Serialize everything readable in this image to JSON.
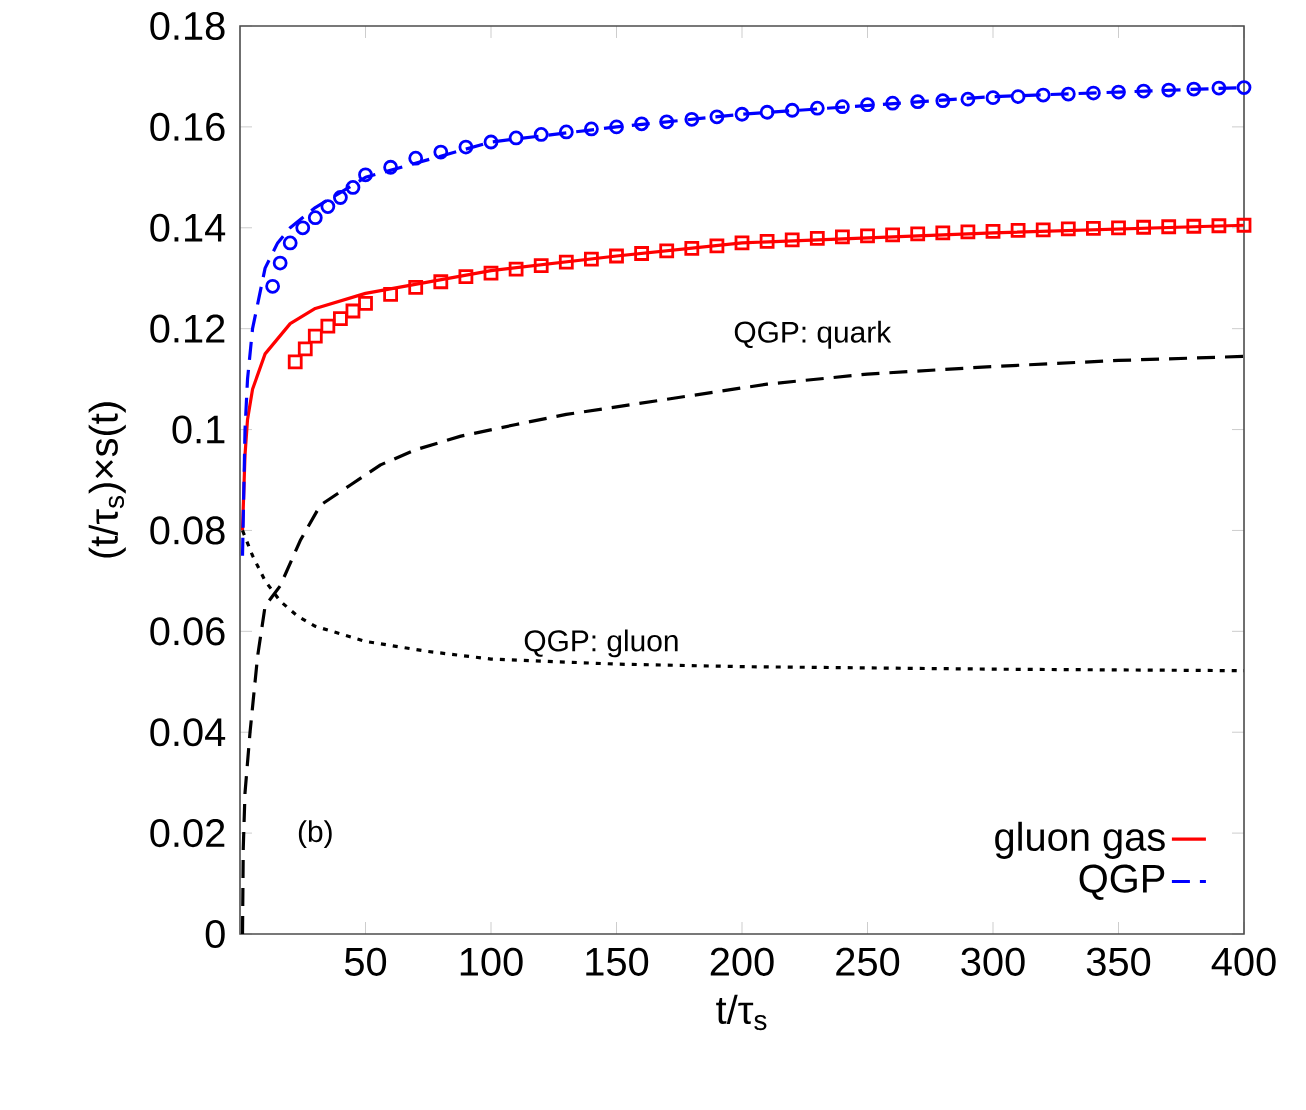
{
  "chart_data": {
    "type": "line",
    "xlabel": "t/τ$_{s}$",
    "ylabel": "(t/τ$_{s}$)×s(t)",
    "xlim": [
      0,
      400
    ],
    "ylim": [
      0,
      0.18
    ],
    "xticks": [
      50,
      100,
      150,
      200,
      250,
      300,
      350,
      400
    ],
    "yticks": [
      0,
      0.02,
      0.04,
      0.06,
      0.08,
      0.1,
      0.12,
      0.14,
      0.16,
      0.18
    ],
    "legend": "bottom right",
    "grid": false,
    "series": [
      {
        "name": "gluon gas",
        "line_style": "solid",
        "color": "#ff0000",
        "x": [
          1,
          2,
          3,
          5,
          10,
          20,
          30,
          50,
          100,
          150,
          200,
          300,
          400
        ],
        "values": [
          0.08,
          0.095,
          0.102,
          0.108,
          0.115,
          0.121,
          0.124,
          0.127,
          0.1315,
          0.1344,
          0.137,
          0.139,
          0.1405
        ]
      },
      {
        "name": "QGP",
        "line_style": "dashed",
        "color": "#0000ff",
        "x": [
          1,
          2,
          3,
          5,
          10,
          15,
          20,
          30,
          50,
          100,
          150,
          200,
          300,
          400
        ],
        "values": [
          0.075,
          0.1,
          0.11,
          0.12,
          0.132,
          0.137,
          0.14,
          0.144,
          0.15,
          0.157,
          0.16,
          0.1625,
          0.166,
          0.1678
        ]
      },
      {
        "type": "scatter",
        "marker": "square",
        "color": "#ff0000",
        "x": [
          22,
          26,
          30,
          35,
          40,
          45,
          50,
          60,
          70,
          80,
          90,
          100,
          110,
          120,
          130,
          140,
          150,
          160,
          170,
          180,
          190,
          200,
          210,
          220,
          230,
          240,
          250,
          260,
          270,
          280,
          290,
          300,
          310,
          320,
          330,
          340,
          350,
          360,
          370,
          380,
          390,
          400
        ],
        "values": [
          0.1134,
          0.116,
          0.1185,
          0.1205,
          0.122,
          0.1235,
          0.125,
          0.1268,
          0.1282,
          0.1293,
          0.1303,
          0.131,
          0.1318,
          0.1325,
          0.1332,
          0.1338,
          0.1344,
          0.1349,
          0.1354,
          0.1359,
          0.1364,
          0.137,
          0.1373,
          0.1376,
          0.1379,
          0.1382,
          0.1384,
          0.1386,
          0.1388,
          0.139,
          0.1392,
          0.1393,
          0.1395,
          0.1396,
          0.1398,
          0.1399,
          0.14,
          0.1401,
          0.1402,
          0.1403,
          0.1404,
          0.1405
        ]
      },
      {
        "type": "scatter",
        "marker": "circle",
        "color": "#0000ff",
        "x": [
          13,
          16,
          20,
          25,
          30,
          35,
          40,
          45,
          50,
          60,
          70,
          80,
          90,
          100,
          110,
          120,
          130,
          140,
          150,
          160,
          170,
          180,
          190,
          200,
          210,
          220,
          230,
          240,
          250,
          260,
          270,
          280,
          290,
          300,
          310,
          320,
          330,
          340,
          350,
          360,
          370,
          380,
          390,
          400
        ],
        "values": [
          0.1284,
          0.133,
          0.137,
          0.14,
          0.142,
          0.1442,
          0.146,
          0.148,
          0.1505,
          0.152,
          0.1538,
          0.155,
          0.156,
          0.157,
          0.1578,
          0.1585,
          0.159,
          0.1596,
          0.16,
          0.1606,
          0.161,
          0.1615,
          0.162,
          0.1625,
          0.1629,
          0.1633,
          0.1637,
          0.164,
          0.1644,
          0.1647,
          0.165,
          0.1652,
          0.1655,
          0.1658,
          0.166,
          0.1663,
          0.1665,
          0.1667,
          0.1669,
          0.1671,
          0.1673,
          0.1675,
          0.1677,
          0.1678
        ]
      },
      {
        "line_style": "dashed",
        "color": "#000000",
        "x": [
          1,
          1.3,
          2,
          4,
          7,
          10,
          16,
          24,
          32,
          44,
          56,
          70,
          88,
          110,
          130,
          170,
          210,
          250,
          300,
          350,
          400
        ],
        "values": [
          0,
          0.017,
          0.028,
          0.04,
          0.055,
          0.065,
          0.069,
          0.078,
          0.085,
          0.089,
          0.093,
          0.096,
          0.0987,
          0.101,
          0.103,
          0.106,
          0.109,
          0.111,
          0.1125,
          0.1137,
          0.1145
        ]
      },
      {
        "line_style": "dotted",
        "color": "#000000",
        "x": [
          1,
          5,
          10,
          16,
          23,
          30,
          40,
          50,
          75,
          100,
          150,
          200,
          300,
          400
        ],
        "values": [
          0.08,
          0.075,
          0.07,
          0.066,
          0.063,
          0.061,
          0.0595,
          0.058,
          0.056,
          0.0545,
          0.0535,
          0.053,
          0.0525,
          0.0522
        ]
      }
    ],
    "annotations": [
      "QGP: quark",
      "QGP: gluon",
      "(b)"
    ]
  }
}
